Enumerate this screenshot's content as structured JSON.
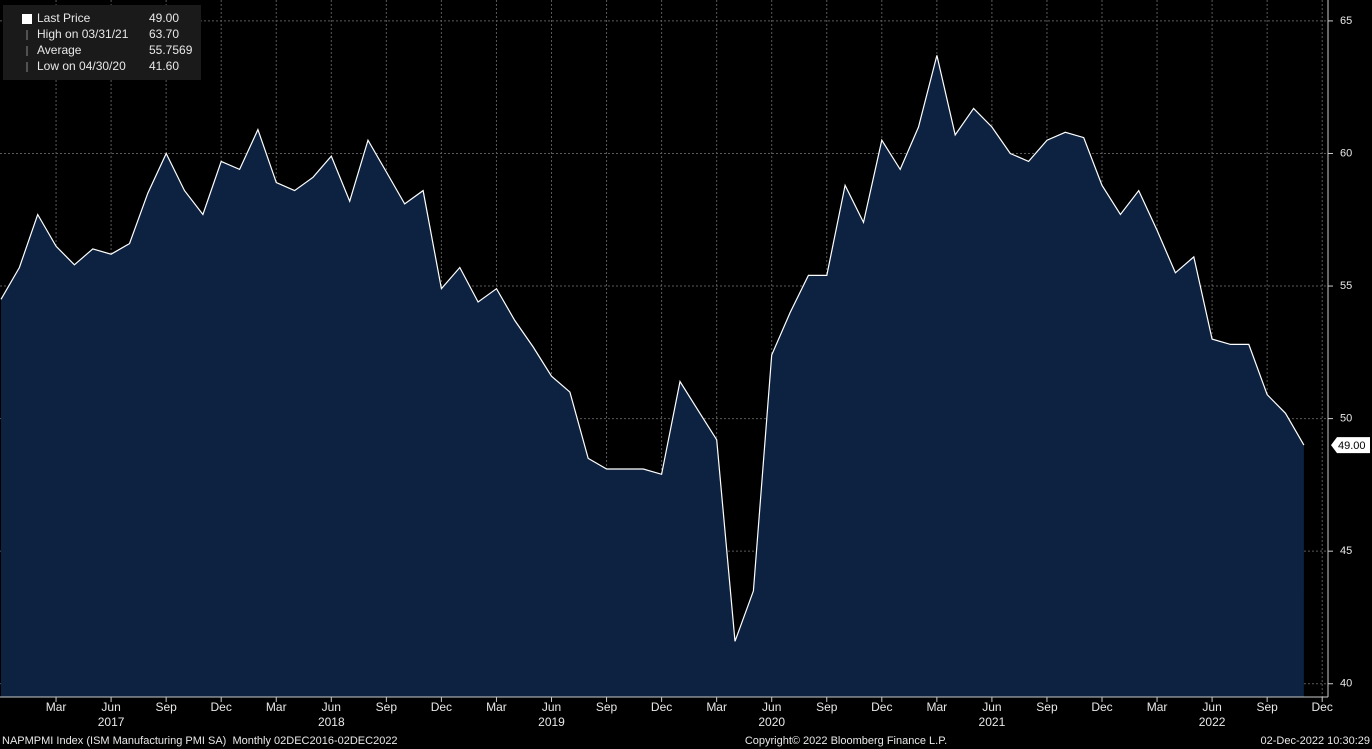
{
  "chart_data": {
    "type": "area",
    "categories": [
      null,
      null,
      null,
      "Mar",
      null,
      null,
      "Jun",
      null,
      null,
      "Sep",
      null,
      null,
      "Dec",
      null,
      null,
      "Mar",
      null,
      null,
      "Jun",
      null,
      null,
      "Sep",
      null,
      null,
      "Dec",
      null,
      null,
      "Mar",
      null,
      null,
      "Jun",
      null,
      null,
      "Sep",
      null,
      null,
      "Dec",
      null,
      null,
      "Mar",
      null,
      null,
      "Jun",
      null,
      null,
      "Sep",
      null,
      null,
      "Dec",
      null,
      null,
      "Mar",
      null,
      null,
      "Jun",
      null,
      null,
      "Sep",
      null,
      null,
      "Dec",
      null,
      null,
      "Mar",
      null,
      null,
      "Jun",
      null,
      null,
      "Sep",
      null,
      null,
      "Dec"
    ],
    "years": [
      "2017",
      "2018",
      "2019",
      "2020",
      "2021",
      "2022"
    ],
    "values": [
      54.5,
      55.7,
      57.7,
      56.5,
      55.8,
      56.4,
      56.2,
      56.6,
      58.5,
      60.0,
      58.6,
      57.7,
      59.7,
      59.4,
      60.9,
      58.9,
      58.6,
      59.1,
      59.9,
      58.2,
      60.5,
      59.3,
      58.1,
      58.6,
      54.9,
      55.7,
      54.4,
      54.9,
      53.7,
      52.7,
      51.6,
      51.0,
      48.5,
      48.1,
      48.1,
      48.1,
      47.9,
      51.4,
      50.3,
      49.2,
      41.6,
      43.5,
      52.4,
      54.0,
      55.4,
      55.4,
      58.8,
      57.4,
      60.5,
      59.4,
      61.0,
      63.7,
      60.7,
      61.7,
      61.0,
      60.0,
      59.7,
      60.5,
      60.8,
      60.6,
      58.8,
      57.7,
      58.6,
      57.1,
      55.5,
      56.1,
      53.0,
      52.8,
      52.8,
      50.9,
      50.2,
      49.0,
      null
    ],
    "color": "#0c2240",
    "line_color": "#ffffff",
    "ylim": [
      39.5,
      65.6
    ],
    "yticks": [
      40,
      45,
      50,
      55,
      60,
      65
    ],
    "grid": true,
    "stats": [
      {
        "name": "Last Price",
        "value": 49.0,
        "value_label": "49.00"
      },
      {
        "name": "High on 03/31/21",
        "value": 63.7,
        "value_label": "63.70"
      },
      {
        "name": "Average",
        "value": 55.7569,
        "value_label": "55.7569"
      },
      {
        "name": "Low on 04/30/20",
        "value": 41.6,
        "value_label": "41.60"
      }
    ],
    "footer": {
      "left": "NAPMPMI Index (ISM Manufacturing PMI SA)  Monthly 02DEC2016-02DEC2022",
      "center": "Copyright© 2022 Bloomberg Finance L.P.",
      "right": "02-Dec-2022 10:30:29"
    }
  }
}
